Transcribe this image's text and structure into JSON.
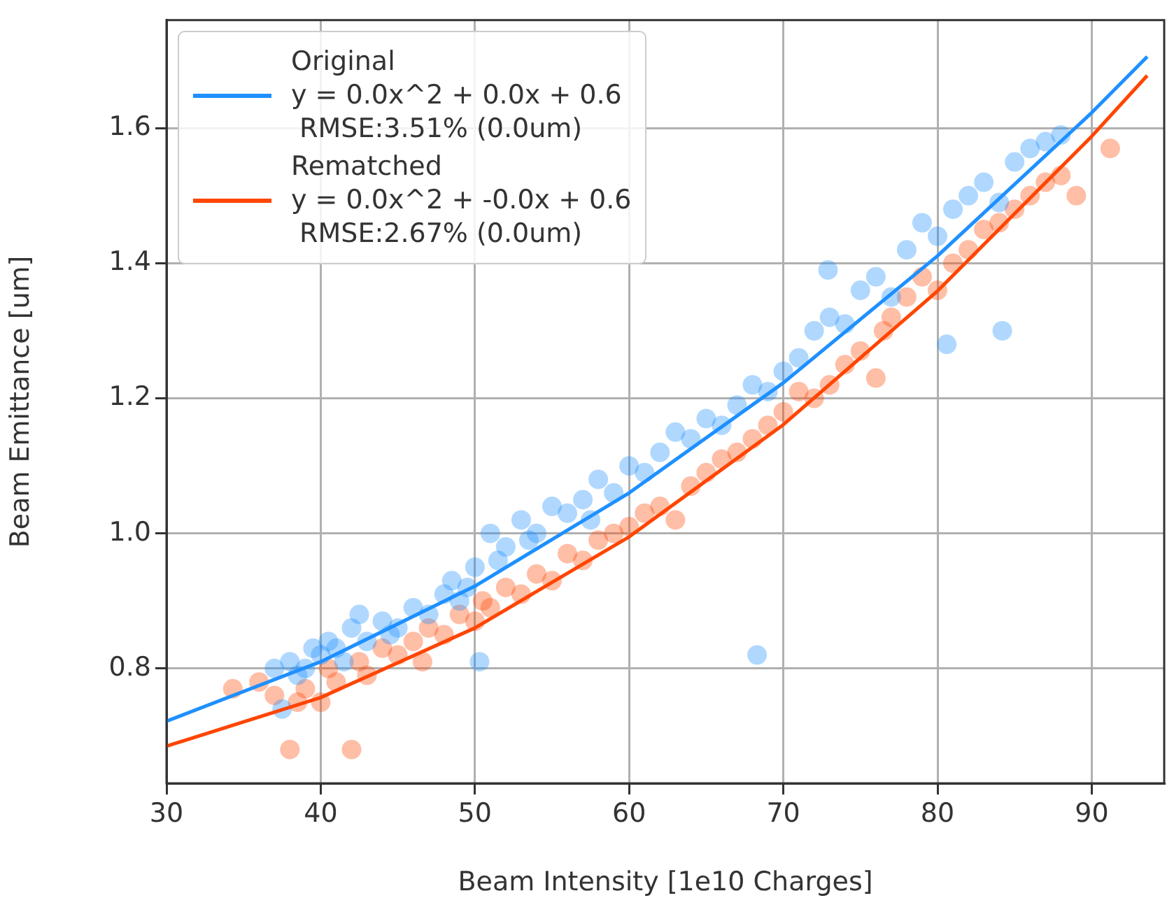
{
  "chart_data": {
    "type": "scatter",
    "xlabel": "Beam Intensity [1e10 Charges]",
    "ylabel": "Beam Emittance [um]",
    "xlim": [
      30,
      94.7
    ],
    "ylim": [
      0.63,
      1.76
    ],
    "xticks": [
      30,
      40,
      50,
      60,
      70,
      80,
      90
    ],
    "yticks": [
      0.8,
      {
        "value": 1.0,
        "label": "1.0"
      },
      1.2,
      1.4,
      1.6
    ],
    "grid": true,
    "legend": "top left",
    "series": [
      {
        "marker": "circle",
        "color": "#1e90ff",
        "x": [
          37,
          37.5,
          38,
          38.5,
          39,
          39.5,
          40,
          40.5,
          41,
          41.5,
          42,
          42.5,
          43,
          44,
          44.5,
          45,
          46,
          47,
          48,
          48.5,
          49,
          49.5,
          50,
          50.3,
          51,
          51.5,
          52,
          53,
          53.5,
          54,
          55,
          56,
          57,
          57.5,
          58,
          59,
          60,
          61,
          62,
          63,
          64,
          65,
          66,
          67,
          68,
          68.3,
          69,
          70,
          71,
          72,
          72.9,
          73,
          74,
          75,
          76,
          77,
          78,
          79,
          80,
          80.6,
          81,
          82,
          83,
          84,
          84.2,
          85,
          86,
          87,
          88
        ],
        "values": [
          0.8,
          0.74,
          0.81,
          0.79,
          0.8,
          0.83,
          0.82,
          0.84,
          0.83,
          0.81,
          0.86,
          0.88,
          0.84,
          0.87,
          0.85,
          0.86,
          0.89,
          0.88,
          0.91,
          0.93,
          0.9,
          0.92,
          0.95,
          0.81,
          1.0,
          0.96,
          0.98,
          1.02,
          0.99,
          1.0,
          1.04,
          1.03,
          1.05,
          1.02,
          1.08,
          1.06,
          1.1,
          1.09,
          1.12,
          1.15,
          1.14,
          1.17,
          1.16,
          1.19,
          1.22,
          0.82,
          1.21,
          1.24,
          1.26,
          1.3,
          1.39,
          1.32,
          1.31,
          1.36,
          1.38,
          1.35,
          1.42,
          1.46,
          1.44,
          1.28,
          1.48,
          1.5,
          1.52,
          1.49,
          1.3,
          1.55,
          1.57,
          1.58,
          1.59
        ]
      },
      {
        "marker": "circle",
        "color": "#ff4500",
        "x": [
          34.3,
          36,
          37,
          38,
          38.5,
          39,
          40,
          40.5,
          41,
          42,
          42.5,
          43,
          44,
          45,
          46,
          46.6,
          47,
          48,
          49,
          50,
          50.5,
          51,
          52,
          53,
          54,
          55,
          56,
          57,
          58,
          59,
          60,
          61,
          62,
          63,
          64,
          65,
          66,
          67,
          68,
          69,
          70,
          71,
          72,
          73,
          74,
          75,
          76,
          76.5,
          77,
          78,
          79,
          80,
          81,
          82,
          83,
          84,
          85,
          86,
          87,
          88,
          89,
          91.2
        ],
        "values": [
          0.77,
          0.78,
          0.76,
          0.68,
          0.75,
          0.77,
          0.75,
          0.8,
          0.78,
          0.68,
          0.81,
          0.79,
          0.83,
          0.82,
          0.84,
          0.81,
          0.86,
          0.85,
          0.88,
          0.87,
          0.9,
          0.89,
          0.92,
          0.91,
          0.94,
          0.93,
          0.97,
          0.96,
          0.99,
          1.0,
          1.01,
          1.03,
          1.04,
          1.02,
          1.07,
          1.09,
          1.11,
          1.12,
          1.14,
          1.16,
          1.18,
          1.21,
          1.2,
          1.22,
          1.25,
          1.27,
          1.23,
          1.3,
          1.32,
          1.35,
          1.38,
          1.36,
          1.4,
          1.42,
          1.45,
          1.46,
          1.48,
          1.5,
          1.52,
          1.53,
          1.5,
          1.57
        ]
      },
      {
        "type": "line",
        "marker": "none",
        "name": "Original\ny = 0.0x^2 + 0.0x + 0.6\n RMSE:3.51% (0.0um)",
        "color": "#1e90ff",
        "x": [
          30,
          40,
          50,
          60,
          70,
          80,
          90,
          93.6
        ],
        "values": [
          0.722,
          0.81,
          0.922,
          1.06,
          1.223,
          1.411,
          1.623,
          1.706
        ]
      },
      {
        "type": "line",
        "marker": "none",
        "name": "Rematched\ny = 0.0x^2 + -0.0x + 0.6\n RMSE:2.67% (0.0um)",
        "color": "#ff4500",
        "x": [
          30,
          40,
          50,
          60,
          70,
          80,
          90,
          93.6
        ],
        "values": [
          0.685,
          0.757,
          0.86,
          0.995,
          1.161,
          1.359,
          1.588,
          1.678
        ]
      }
    ]
  }
}
